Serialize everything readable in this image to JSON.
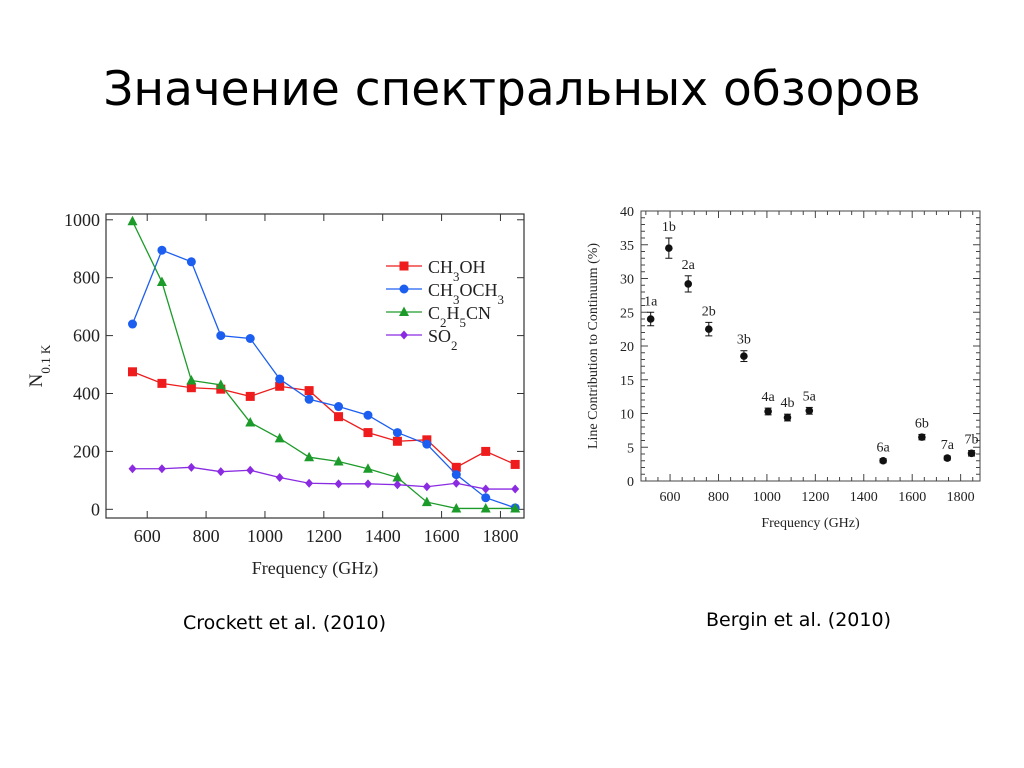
{
  "slide": {
    "title": "Значение спектральных обзоров",
    "caption_left": "Crockett et al. (2010)",
    "caption_right": "Bergin et al. (2010)"
  },
  "chart_data": [
    {
      "type": "line",
      "xlabel": "Frequency (GHz)",
      "ylabel": "N0.1 K",
      "xlim": [
        460,
        1880
      ],
      "ylim": [
        -30,
        1020
      ],
      "xticks": [
        600,
        800,
        1000,
        1200,
        1400,
        1600,
        1800
      ],
      "yticks": [
        0,
        200,
        400,
        600,
        800,
        1000
      ],
      "grid": false,
      "legend": "top-right",
      "series": [
        {
          "name": "CH3OH",
          "color": "#ee1c1c",
          "marker": "square",
          "x": [
            550,
            650,
            750,
            850,
            950,
            1050,
            1150,
            1250,
            1350,
            1450,
            1550,
            1650,
            1750,
            1850
          ],
          "y": [
            475,
            435,
            420,
            415,
            390,
            425,
            410,
            320,
            265,
            235,
            240,
            145,
            200,
            155
          ]
        },
        {
          "name": "CH3OCH3",
          "color": "#1c5ff0",
          "marker": "circle",
          "x": [
            550,
            650,
            750,
            850,
            950,
            1050,
            1150,
            1250,
            1350,
            1450,
            1550,
            1650,
            1750,
            1850
          ],
          "y": [
            640,
            895,
            855,
            600,
            590,
            450,
            380,
            355,
            325,
            265,
            225,
            120,
            40,
            5
          ]
        },
        {
          "name": "C2H5CN",
          "color": "#1d9b2a",
          "marker": "triangle",
          "x": [
            550,
            650,
            750,
            850,
            950,
            1050,
            1150,
            1250,
            1350,
            1450,
            1550,
            1650,
            1750,
            1850
          ],
          "y": [
            995,
            785,
            445,
            430,
            300,
            245,
            180,
            165,
            140,
            110,
            25,
            3,
            3,
            3
          ]
        },
        {
          "name": "SO2",
          "color": "#8a2be2",
          "marker": "diamond",
          "x": [
            550,
            650,
            750,
            850,
            950,
            1050,
            1150,
            1250,
            1350,
            1450,
            1550,
            1650,
            1750,
            1850
          ],
          "y": [
            140,
            140,
            145,
            130,
            135,
            110,
            90,
            88,
            88,
            85,
            78,
            90,
            70,
            70
          ]
        }
      ]
    },
    {
      "type": "scatter",
      "xlabel": "Frequency (GHz)",
      "ylabel": "Line Contribution to Continuum (%)",
      "xlim": [
        480,
        1880
      ],
      "ylim": [
        0,
        40
      ],
      "xticks": [
        600,
        800,
        1000,
        1200,
        1400,
        1600,
        1800
      ],
      "yticks": [
        0,
        5,
        10,
        15,
        20,
        25,
        30,
        35,
        40
      ],
      "grid": false,
      "points": [
        {
          "label": "1a",
          "x": 520,
          "y": 24.0,
          "err": 1.0
        },
        {
          "label": "1b",
          "x": 595,
          "y": 34.5,
          "err": 1.5
        },
        {
          "label": "2a",
          "x": 675,
          "y": 29.2,
          "err": 1.2
        },
        {
          "label": "2b",
          "x": 760,
          "y": 22.5,
          "err": 1.0
        },
        {
          "label": "3b",
          "x": 905,
          "y": 18.5,
          "err": 0.8
        },
        {
          "label": "4a",
          "x": 1005,
          "y": 10.3,
          "err": 0.5
        },
        {
          "label": "4b",
          "x": 1085,
          "y": 9.4,
          "err": 0.5
        },
        {
          "label": "5a",
          "x": 1175,
          "y": 10.4,
          "err": 0.5
        },
        {
          "label": "6a",
          "x": 1480,
          "y": 3.0,
          "err": 0.3
        },
        {
          "label": "6b",
          "x": 1640,
          "y": 6.5,
          "err": 0.4
        },
        {
          "label": "7a",
          "x": 1745,
          "y": 3.4,
          "err": 0.3
        },
        {
          "label": "7b",
          "x": 1845,
          "y": 4.1,
          "err": 0.4
        }
      ]
    }
  ]
}
